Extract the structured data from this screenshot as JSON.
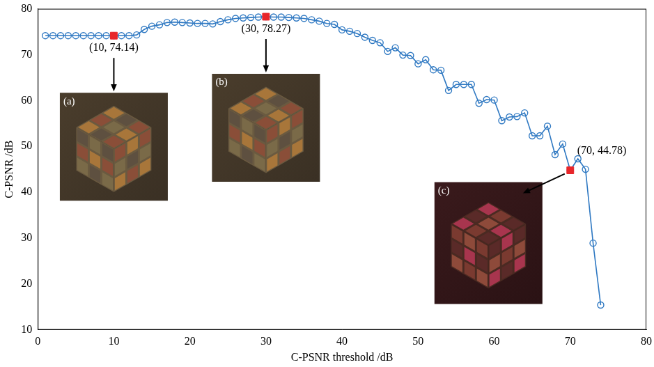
{
  "chart_data": {
    "type": "line",
    "x_label": "C-PSNR threshold /dB",
    "y_label": "C-PSNR /dB",
    "x": [
      1,
      2,
      3,
      4,
      5,
      6,
      7,
      8,
      9,
      10,
      11,
      12,
      13,
      14,
      15,
      16,
      17,
      18,
      19,
      20,
      21,
      22,
      23,
      24,
      25,
      26,
      27,
      28,
      29,
      30,
      31,
      32,
      33,
      34,
      35,
      36,
      37,
      38,
      39,
      40,
      41,
      42,
      43,
      44,
      45,
      46,
      47,
      48,
      49,
      50,
      51,
      52,
      53,
      54,
      55,
      56,
      57,
      58,
      59,
      60,
      61,
      62,
      63,
      64,
      65,
      66,
      67,
      68,
      69,
      70,
      71,
      72,
      73,
      74
    ],
    "values": [
      74.14,
      74.14,
      74.14,
      74.14,
      74.14,
      74.14,
      74.14,
      74.14,
      74.14,
      74.14,
      74.14,
      74.14,
      74.3,
      75.5,
      76.2,
      76.5,
      77.0,
      77.1,
      77.0,
      76.9,
      76.8,
      76.8,
      76.7,
      77.2,
      77.6,
      77.9,
      78.0,
      78.1,
      78.2,
      78.27,
      78.2,
      78.2,
      78.1,
      78.0,
      77.9,
      77.6,
      77.3,
      76.8,
      76.6,
      75.4,
      75.1,
      74.6,
      73.8,
      73.1,
      72.6,
      70.7,
      71.5,
      69.9,
      69.8,
      68.0,
      68.9,
      66.7,
      66.6,
      62.2,
      63.5,
      63.5,
      63.5,
      59.4,
      60.2,
      60.1,
      55.6,
      56.4,
      56.5,
      57.3,
      52.3,
      52.3,
      54.4,
      48.2,
      50.5,
      44.78,
      47.3,
      45.0,
      28.9,
      15.4
    ],
    "color": "#2e78c2",
    "marker": "circle",
    "xlim": [
      0,
      80
    ],
    "xticks": [
      0,
      10,
      20,
      30,
      40,
      50,
      60,
      70,
      80
    ],
    "ylim": [
      10,
      80
    ],
    "yticks": [
      10,
      20,
      30,
      40,
      50,
      60,
      70,
      80
    ],
    "grid": false,
    "annotations": [
      {
        "text": "(10, 74.14)",
        "x": 10,
        "y": 74.14,
        "color": "#e8262a",
        "marker": "square",
        "inset": "(a)"
      },
      {
        "text": "(30, 78.27)",
        "x": 30,
        "y": 78.27,
        "color": "#e8262a",
        "marker": "square",
        "inset": "(b)"
      },
      {
        "text": "(70, 44.78)",
        "x": 70,
        "y": 44.78,
        "color": "#e8262a",
        "marker": "square",
        "inset": "(c)"
      }
    ]
  }
}
